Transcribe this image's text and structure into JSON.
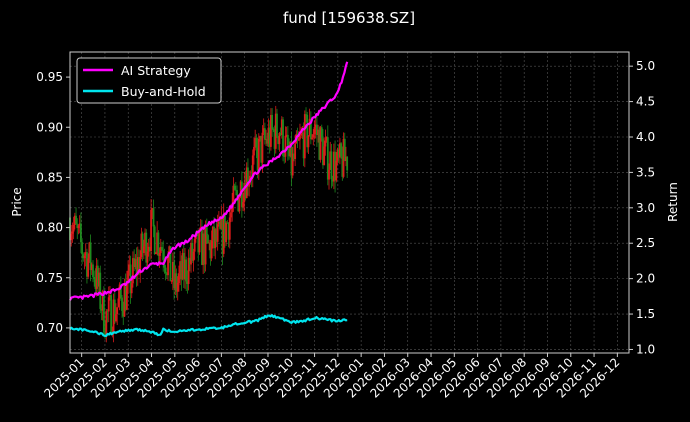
{
  "chart_data": {
    "type": "line",
    "title": "fund [159638.SZ]",
    "ylabel_left": "Price",
    "ylabel_right": "Return",
    "left_axis": {
      "range": [
        0.675,
        0.975
      ],
      "ticks": [
        0.7,
        0.75,
        0.8,
        0.85,
        0.9,
        0.95
      ],
      "tick_labels": [
        "0.70",
        "0.75",
        "0.80",
        "0.85",
        "0.90",
        "0.95"
      ]
    },
    "right_axis": {
      "range": [
        0.95,
        5.2
      ],
      "ticks": [
        1.0,
        1.5,
        2.0,
        2.5,
        3.0,
        3.5,
        4.0,
        4.5,
        5.0
      ],
      "tick_labels": [
        "1.0",
        "1.5",
        "2.0",
        "2.5",
        "3.0",
        "3.5",
        "4.0",
        "4.5",
        "5.0"
      ]
    },
    "x_range": [
      0,
      24.0
    ],
    "x_ticks": [
      0.5,
      1.5,
      2.5,
      3.5,
      4.5,
      5.5,
      6.5,
      7.5,
      8.5,
      9.5,
      10.5,
      11.5,
      12.5,
      13.5,
      14.5,
      15.5,
      16.5,
      17.5,
      18.5,
      19.5,
      20.5,
      21.5,
      22.5,
      23.5
    ],
    "x_tick_labels": [
      "2025-01",
      "2025-02",
      "2025-03",
      "2025-04",
      "2025-05",
      "2025-06",
      "2025-07",
      "2025-08",
      "2025-09",
      "2025-10",
      "2025-11",
      "2025-12",
      "2026-01",
      "2026-02",
      "2026-03",
      "2026-04",
      "2026-05",
      "2026-06",
      "2026-07",
      "2026-08",
      "2026-09",
      "2026-10",
      "2026-11",
      "2026-12"
    ],
    "grid": true,
    "legend_placement": "top-left",
    "colors": {
      "background": "#000000",
      "up": "#dd1a1a",
      "down": "#1e8a1e",
      "ai": "#ff00ff",
      "bh": "#00e5ee",
      "grid": "#555555",
      "frame": "#cccccc"
    },
    "legend": [
      {
        "label": "AI Strategy",
        "color": "#ff00ff"
      },
      {
        "label": "Buy-and-Hold",
        "color": "#00e5ee"
      }
    ],
    "series": [
      {
        "name": "AI Strategy",
        "axis": "right",
        "color": "#ff00ff",
        "x": [
          0.0,
          0.5,
          1.0,
          1.5,
          2.0,
          2.5,
          3.0,
          3.5,
          4.0,
          4.5,
          5.0,
          5.5,
          6.0,
          6.5,
          7.0,
          7.5,
          8.0,
          8.5,
          9.0,
          9.5,
          10.0,
          10.5,
          11.0,
          11.5,
          11.9
        ],
        "y": [
          1.72,
          1.73,
          1.76,
          1.8,
          1.84,
          1.95,
          2.1,
          2.2,
          2.22,
          2.45,
          2.52,
          2.65,
          2.78,
          2.85,
          3.05,
          3.3,
          3.5,
          3.62,
          3.75,
          3.9,
          4.1,
          4.28,
          4.45,
          4.62,
          5.05
        ]
      },
      {
        "name": "Buy-and-Hold",
        "axis": "right",
        "color": "#00e5ee",
        "x": [
          0.0,
          0.5,
          1.0,
          1.5,
          2.0,
          2.5,
          3.0,
          3.5,
          3.9,
          4.0,
          4.5,
          5.0,
          5.5,
          6.0,
          6.5,
          7.0,
          7.5,
          8.0,
          8.5,
          9.0,
          9.5,
          10.0,
          10.5,
          11.0,
          11.5,
          11.9
        ],
        "y": [
          1.3,
          1.28,
          1.25,
          1.2,
          1.25,
          1.27,
          1.28,
          1.25,
          1.2,
          1.28,
          1.25,
          1.27,
          1.28,
          1.3,
          1.3,
          1.36,
          1.38,
          1.4,
          1.48,
          1.45,
          1.38,
          1.4,
          1.45,
          1.42,
          1.4,
          1.42
        ]
      },
      {
        "name": "",
        "axis": "left",
        "kind": "candles",
        "x": [
          0.0,
          0.5,
          1.0,
          1.5,
          2.0,
          2.5,
          3.0,
          3.5,
          4.0,
          4.5,
          5.0,
          5.5,
          6.0,
          6.5,
          7.0,
          7.5,
          8.0,
          8.5,
          9.0,
          9.5,
          10.0,
          10.5,
          11.0,
          11.5,
          11.9
        ],
        "y": [
          0.81,
          0.78,
          0.76,
          0.71,
          0.72,
          0.74,
          0.77,
          0.8,
          0.78,
          0.74,
          0.76,
          0.78,
          0.78,
          0.79,
          0.82,
          0.85,
          0.87,
          0.89,
          0.9,
          0.86,
          0.89,
          0.9,
          0.87,
          0.86,
          0.87
        ]
      }
    ]
  }
}
